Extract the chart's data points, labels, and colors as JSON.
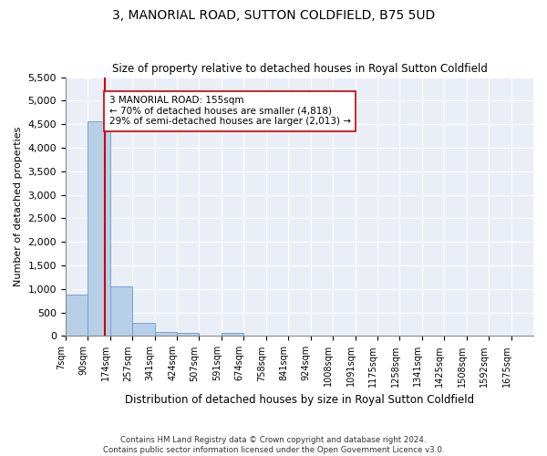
{
  "title": "3, MANORIAL ROAD, SUTTON COLDFIELD, B75 5UD",
  "subtitle": "Size of property relative to detached houses in Royal Sutton Coldfield",
  "xlabel": "Distribution of detached houses by size in Royal Sutton Coldfield",
  "ylabel": "Number of detached properties",
  "bar_color": "#b8cfe8",
  "bar_edge_color": "#6699cc",
  "property_line_color": "#cc0000",
  "property_value": 155,
  "annotation_text": "3 MANORIAL ROAD: 155sqm\n← 70% of detached houses are smaller (4,818)\n29% of semi-detached houses are larger (2,013) →",
  "annotation_box_color": "#ffffff",
  "annotation_box_edge": "#cc0000",
  "categories": [
    "7sqm",
    "90sqm",
    "174sqm",
    "257sqm",
    "341sqm",
    "424sqm",
    "507sqm",
    "591sqm",
    "674sqm",
    "758sqm",
    "841sqm",
    "924sqm",
    "1008sqm",
    "1091sqm",
    "1175sqm",
    "1258sqm",
    "1341sqm",
    "1425sqm",
    "1508sqm",
    "1592sqm",
    "1675sqm"
  ],
  "bin_edges": [
    7,
    90,
    174,
    257,
    341,
    424,
    507,
    591,
    674,
    758,
    841,
    924,
    1008,
    1091,
    1175,
    1258,
    1341,
    1425,
    1508,
    1592,
    1675,
    1758
  ],
  "values": [
    880,
    4560,
    1060,
    285,
    85,
    75,
    0,
    60,
    0,
    0,
    0,
    0,
    0,
    0,
    0,
    0,
    0,
    0,
    0,
    0,
    0
  ],
  "ylim": [
    0,
    5500
  ],
  "yticks": [
    0,
    500,
    1000,
    1500,
    2000,
    2500,
    3000,
    3500,
    4000,
    4500,
    5000,
    5500
  ],
  "plot_background": "#eaeff7",
  "footer": "Contains HM Land Registry data © Crown copyright and database right 2024.\nContains public sector information licensed under the Open Government Licence v3.0."
}
